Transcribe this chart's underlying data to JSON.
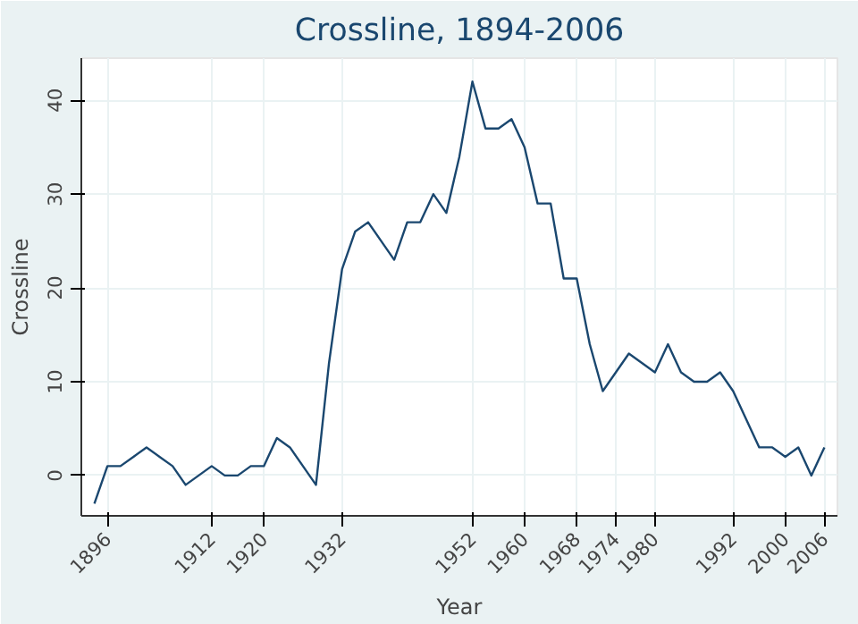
{
  "chart_data": {
    "type": "line",
    "title": "Crossline, 1894-2006",
    "xlabel": "Year",
    "ylabel": "Crossline",
    "x": [
      1894,
      1896,
      1898,
      1900,
      1902,
      1904,
      1906,
      1908,
      1910,
      1912,
      1914,
      1916,
      1918,
      1920,
      1922,
      1924,
      1926,
      1928,
      1930,
      1932,
      1934,
      1936,
      1938,
      1940,
      1942,
      1944,
      1946,
      1948,
      1950,
      1952,
      1954,
      1956,
      1958,
      1960,
      1962,
      1964,
      1966,
      1968,
      1970,
      1972,
      1974,
      1976,
      1978,
      1980,
      1982,
      1984,
      1986,
      1988,
      1990,
      1992,
      1994,
      1996,
      1998,
      2000,
      2002,
      2004,
      2006
    ],
    "series": [
      {
        "color": "#1a476f",
        "values": [
          -3,
          1,
          1,
          2,
          3,
          2,
          1,
          -1,
          0,
          1,
          0,
          0,
          1,
          1,
          4,
          3,
          1,
          -1,
          12,
          22,
          26,
          27,
          25,
          23,
          27,
          27,
          30,
          28,
          34,
          42,
          37,
          37,
          38,
          35,
          29,
          29,
          21,
          21,
          14,
          9,
          11,
          13,
          12,
          11,
          14,
          11,
          10,
          10,
          11,
          9,
          6,
          3,
          3,
          2,
          3,
          0,
          3
        ]
      }
    ],
    "xlim": [
      1892,
      2008
    ],
    "ylim": [
      -4.3,
      44.5
    ],
    "xticks": [
      1896,
      1912,
      1920,
      1932,
      1952,
      1960,
      1968,
      1974,
      1980,
      1992,
      2000,
      2006
    ],
    "yticks": [
      0,
      10,
      20,
      30,
      40
    ],
    "grid": true,
    "line_style": "solid"
  }
}
